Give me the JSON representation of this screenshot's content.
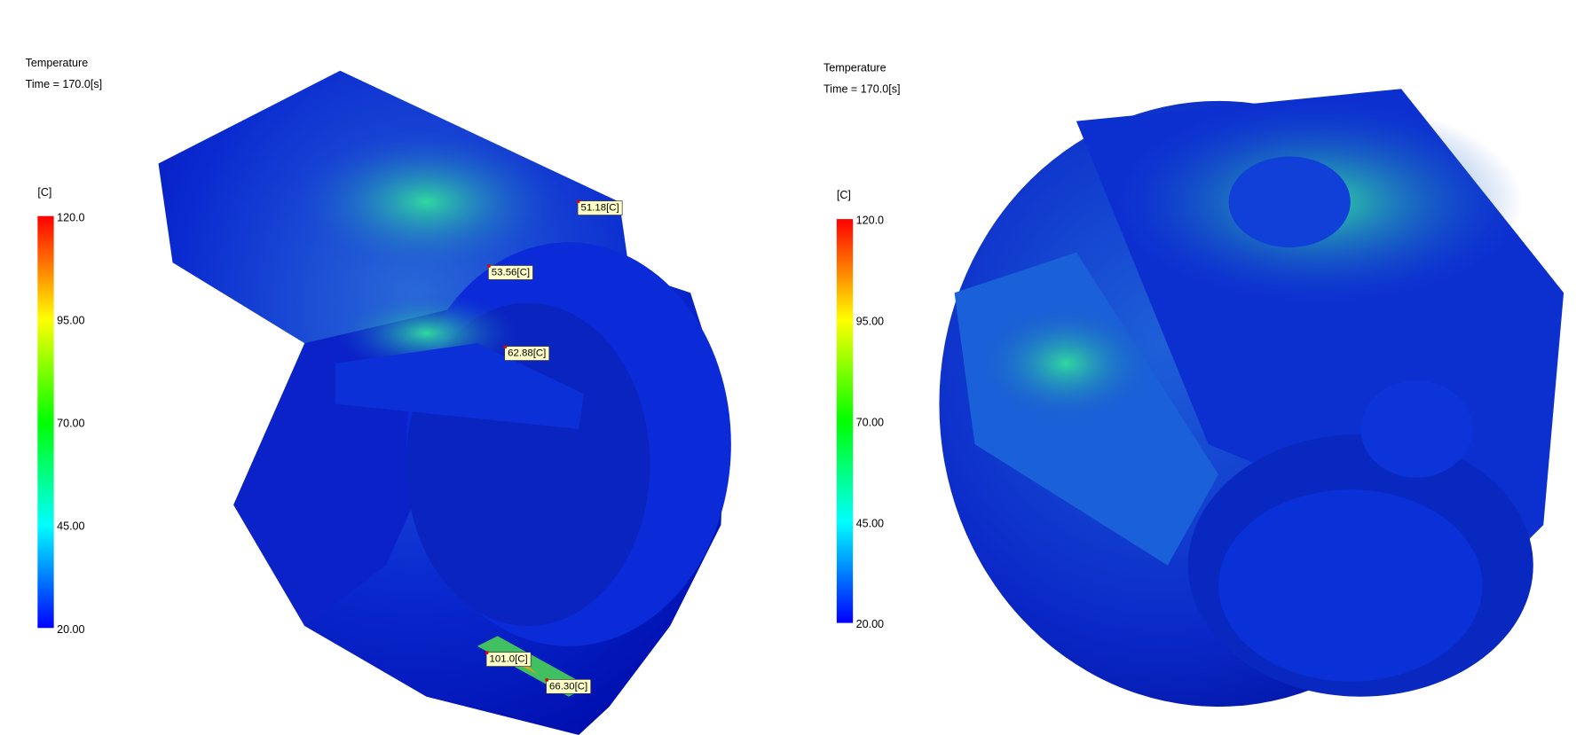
{
  "views": [
    {
      "title": "Temperature",
      "time": "Time = 170.0[s]",
      "legend": {
        "unit": "[C]",
        "ticks": [
          "120.0",
          "95.00",
          "70.00",
          "45.00",
          "20.00"
        ]
      },
      "probes": [
        "51.18[C]",
        "53.56[C]",
        "62.88[C]",
        "101.0[C]",
        "66.30[C]"
      ]
    },
    {
      "title": "Temperature",
      "time": "Time = 170.0[s]",
      "legend": {
        "unit": "[C]",
        "ticks": [
          "120.0",
          "95.00",
          "70.00",
          "45.00",
          "20.00"
        ]
      },
      "probes": []
    }
  ]
}
